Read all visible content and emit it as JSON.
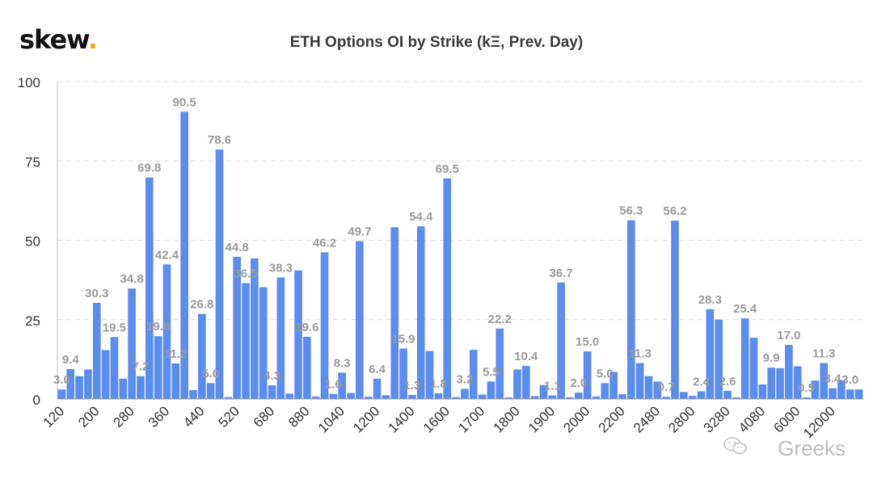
{
  "logo": {
    "text": "skew",
    "dot": "."
  },
  "watermark": {
    "text": "Greeks",
    "icon": "wechat-icon"
  },
  "chart_data": {
    "type": "bar",
    "title": "ETH Options OI by Strike (kΞ, Prev. Day)",
    "xlabel": "",
    "ylabel": "",
    "ylim": [
      0,
      100
    ],
    "yticks": [
      0,
      25,
      50,
      75,
      100
    ],
    "grid": true,
    "bar_color": "#5b8def",
    "label_color": "#9a9a9a",
    "tick_labels": [
      "120",
      "200",
      "280",
      "360",
      "440",
      "520",
      "680",
      "880",
      "1040",
      "1200",
      "1400",
      "1600",
      "1700",
      "1800",
      "1900",
      "2000",
      "2200",
      "2480",
      "2800",
      "3280",
      "4080",
      "6000",
      "12000"
    ],
    "tick_positions": [
      0,
      4,
      8,
      12,
      16,
      20,
      24,
      28,
      32,
      36,
      40,
      44,
      48,
      52,
      56,
      60,
      64,
      68,
      72,
      76,
      80,
      84,
      88
    ],
    "values": [
      3.0,
      9.4,
      7.2,
      9.3,
      30.3,
      15.4,
      19.5,
      6.4,
      34.8,
      7.2,
      69.8,
      19.8,
      42.4,
      11.2,
      90.5,
      2.8,
      26.8,
      5.0,
      78.6,
      0.6,
      44.8,
      36.5,
      44.3,
      35.2,
      4.3,
      38.3,
      1.7,
      40.5,
      19.6,
      0.8,
      46.2,
      1.6,
      8.3,
      1.9,
      49.7,
      0.7,
      6.4,
      1.2,
      54.1,
      15.9,
      1.3,
      54.4,
      15.1,
      1.8,
      69.5,
      0.6,
      3.2,
      15.5,
      1.4,
      5.5,
      22.2,
      0.5,
      9.3,
      10.4,
      0.9,
      4.4,
      1.1,
      36.7,
      0.5,
      2.0,
      15.0,
      0.8,
      5.0,
      8.5,
      1.5,
      56.3,
      11.3,
      7.2,
      5.5,
      0.7,
      56.2,
      2.2,
      1.0,
      2.4,
      28.3,
      25.0,
      2.6,
      0.5,
      25.4,
      19.3,
      4.6,
      9.9,
      9.7,
      17.0,
      10.3,
      0.5,
      5.8,
      11.3,
      3.4,
      5.9,
      3.0,
      3.0
    ],
    "data_labels": [
      {
        "i": 0,
        "text": "3.0"
      },
      {
        "i": 1,
        "text": "9.4"
      },
      {
        "i": 4,
        "text": "30.3"
      },
      {
        "i": 6,
        "text": "19.5"
      },
      {
        "i": 8,
        "text": "34.8"
      },
      {
        "i": 9,
        "text": "7.2"
      },
      {
        "i": 10,
        "text": "69.8"
      },
      {
        "i": 11,
        "text": "19.8"
      },
      {
        "i": 12,
        "text": "42.4"
      },
      {
        "i": 13,
        "text": "11.2"
      },
      {
        "i": 14,
        "text": "90.5"
      },
      {
        "i": 16,
        "text": "26.8"
      },
      {
        "i": 17,
        "text": "5.0"
      },
      {
        "i": 18,
        "text": "78.6"
      },
      {
        "i": 20,
        "text": "44.8"
      },
      {
        "i": 21,
        "text": "36.5"
      },
      {
        "i": 24,
        "text": "4.3"
      },
      {
        "i": 25,
        "text": "38.3"
      },
      {
        "i": 28,
        "text": "19.6"
      },
      {
        "i": 30,
        "text": "46.2"
      },
      {
        "i": 31,
        "text": "1.6"
      },
      {
        "i": 32,
        "text": "8.3"
      },
      {
        "i": 34,
        "text": "49.7"
      },
      {
        "i": 36,
        "text": "6.4"
      },
      {
        "i": 39,
        "text": "15.9"
      },
      {
        "i": 40,
        "text": "1.3"
      },
      {
        "i": 41,
        "text": "54.4"
      },
      {
        "i": 43,
        "text": "1.8"
      },
      {
        "i": 44,
        "text": "69.5"
      },
      {
        "i": 46,
        "text": "3.2"
      },
      {
        "i": 49,
        "text": "5.5"
      },
      {
        "i": 50,
        "text": "22.2"
      },
      {
        "i": 53,
        "text": "10.4"
      },
      {
        "i": 56,
        "text": "1.1"
      },
      {
        "i": 57,
        "text": "36.7"
      },
      {
        "i": 59,
        "text": "2.0"
      },
      {
        "i": 60,
        "text": "15.0"
      },
      {
        "i": 62,
        "text": "5.0"
      },
      {
        "i": 65,
        "text": "56.3"
      },
      {
        "i": 66,
        "text": "11.3"
      },
      {
        "i": 69,
        "text": "0.7"
      },
      {
        "i": 70,
        "text": "56.2"
      },
      {
        "i": 73,
        "text": "2.4"
      },
      {
        "i": 74,
        "text": "28.3"
      },
      {
        "i": 76,
        "text": "2.6"
      },
      {
        "i": 78,
        "text": "25.4"
      },
      {
        "i": 81,
        "text": "9.9"
      },
      {
        "i": 83,
        "text": "17.0"
      },
      {
        "i": 85,
        "text": "0.5"
      },
      {
        "i": 87,
        "text": "11.3"
      },
      {
        "i": 88,
        "text": "3.4"
      },
      {
        "i": 90,
        "text": "3.0"
      }
    ]
  }
}
